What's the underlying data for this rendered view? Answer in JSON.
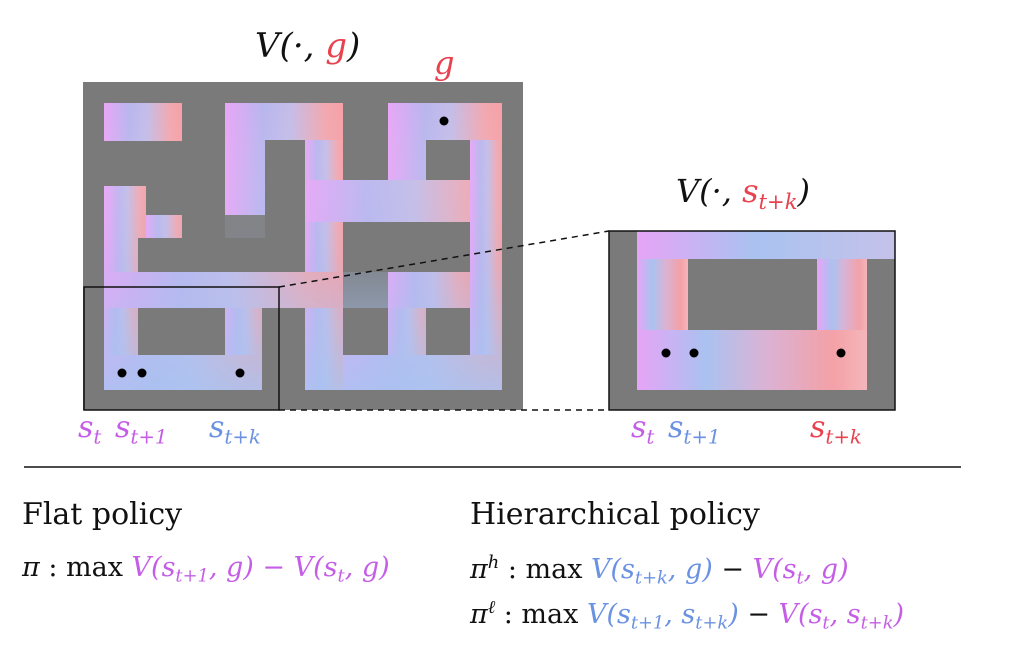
{
  "colors": {
    "wall": "#7a7a7a",
    "magenta": "#e7a6f7",
    "blue": "#a9c3f1",
    "red": "#f39a9e",
    "text_magenta": "#c55ee6",
    "text_blue": "#6a91e2",
    "text_red": "#e8424f",
    "dark": "#111111"
  },
  "full_maze": {
    "title_prefix": "V(·, ",
    "title_goal": "g",
    "title_suffix": ")",
    "goal_label": "g",
    "state_labels": {
      "st": "s",
      "st_sub": "t",
      "st1": "s",
      "st1_sub": "t+1",
      "stk": "s",
      "stk_sub": "t+k"
    }
  },
  "zoom_maze": {
    "title_prefix": "V(·, ",
    "title_goal": "s",
    "title_goal_sub": "t+k",
    "title_suffix": ")",
    "state_labels": {
      "st": "s",
      "st_sub": "t",
      "st1": "s",
      "st1_sub": "t+1",
      "stk": "s",
      "stk_sub": "t+k"
    }
  },
  "flat": {
    "heading": "Flat policy",
    "pi": "π",
    "colon": " :  max ",
    "expr": "V(s",
    "expr_sub": "t+1",
    "expr_tail": ", g) − V(s",
    "expr_sub2": "t",
    "expr_end": ", g)"
  },
  "hier": {
    "heading": "Hierarchical policy",
    "pi_h": "π",
    "pi_h_sup": "h",
    "pi_l": "π",
    "pi_l_sup": "ℓ",
    "colon": " :  max ",
    "h_a": "V(s",
    "h_a_sub": "t+k",
    "h_a_end": ", g)",
    "minus": " − ",
    "h_b": "V(s",
    "h_b_sub": "t",
    "h_b_end": ", g)",
    "l_a": "V(s",
    "l_a_sub": "t+1",
    "l_a_mid": ", s",
    "l_a_sub2": "t+k",
    "l_a_end": ")",
    "l_b": "V(s",
    "l_b_sub": "t",
    "l_b_mid": ", s",
    "l_b_sub2": "t+k",
    "l_b_end": ")"
  }
}
